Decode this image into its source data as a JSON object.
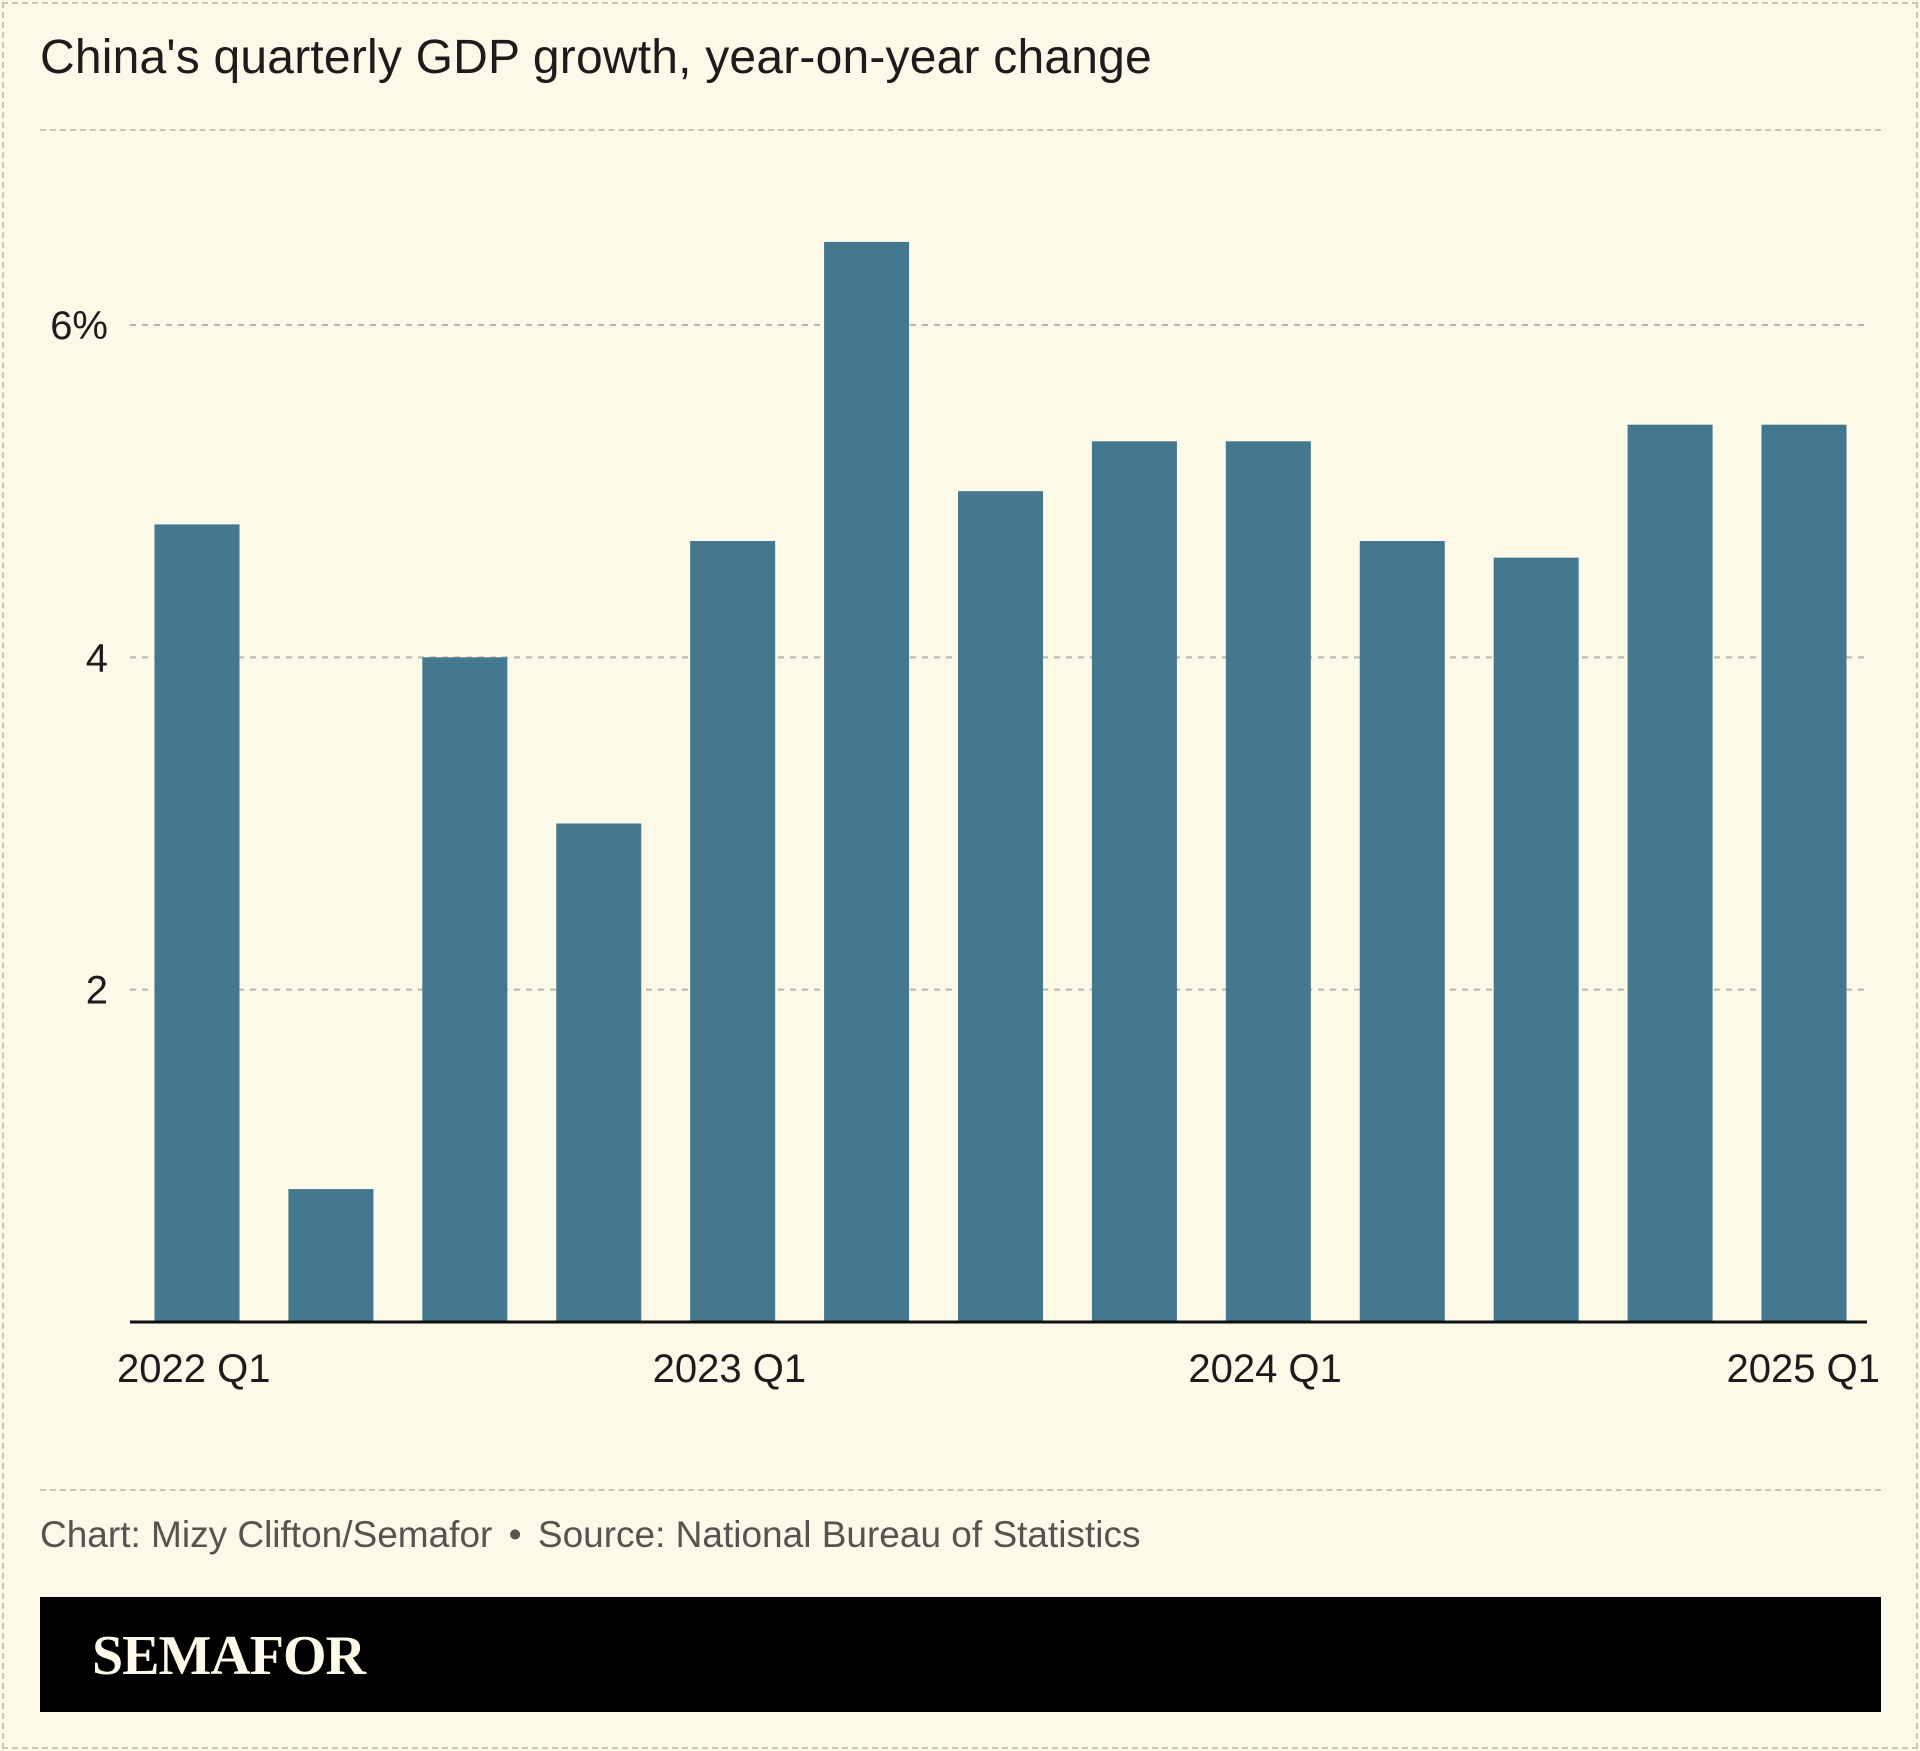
{
  "title": "China's quarterly GDP growth, year-on-year change",
  "footer": {
    "chart_credit": "Chart: Mizy Clifton/Semafor",
    "separator": "•",
    "source": "Source: National Bureau of Statistics"
  },
  "brand": {
    "name": "SEMAFOR"
  },
  "colors": {
    "background": "#fcf9e9",
    "bar": "#44788e",
    "grid": "#b9b7ab",
    "text": "#1c1c1c"
  },
  "chart_data": {
    "type": "bar",
    "title": "China's quarterly GDP growth, year-on-year change",
    "xlabel": "",
    "ylabel": "",
    "ylim": [
      0,
      7
    ],
    "yticks": [
      2,
      4,
      6
    ],
    "ytick_labels": [
      "2",
      "4",
      "6%"
    ],
    "categories": [
      "2022 Q1",
      "2022 Q2",
      "2022 Q3",
      "2022 Q4",
      "2023 Q1",
      "2023 Q2",
      "2023 Q3",
      "2023 Q4",
      "2024 Q1",
      "2024 Q2",
      "2024 Q3",
      "2024 Q4",
      "2025 Q1"
    ],
    "values": [
      4.8,
      0.8,
      4.0,
      3.0,
      4.7,
      6.5,
      5.0,
      5.3,
      5.3,
      4.7,
      4.6,
      5.4,
      5.4
    ],
    "xtick_labels": [
      "2022 Q1",
      "2023 Q1",
      "2024 Q1",
      "2025 Q1"
    ],
    "grid": true,
    "legend": "none"
  }
}
